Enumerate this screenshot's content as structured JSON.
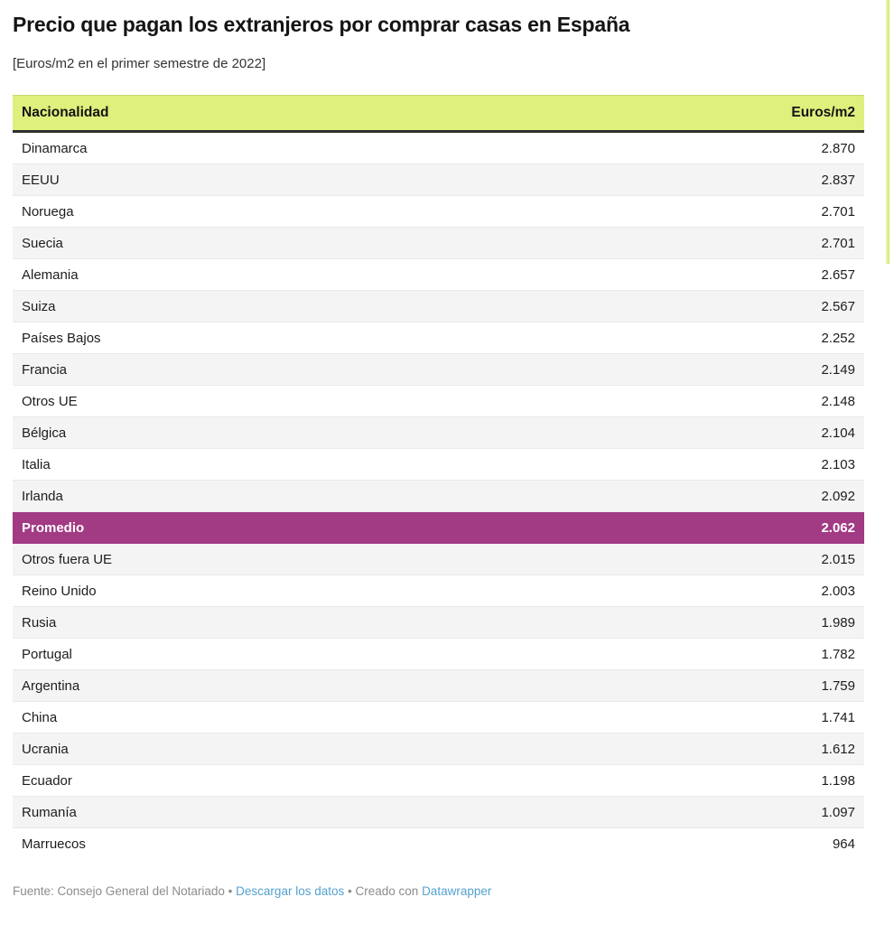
{
  "title": "Precio que pagan los extranjeros por comprar casas en España",
  "subtitle": "[Euros/m2 en el primer semestre de 2022]",
  "table": {
    "columns": [
      "Nacionalidad",
      "Euros/m2"
    ],
    "rows": [
      {
        "label": "Dinamarca",
        "value": "2.870",
        "highlight": false
      },
      {
        "label": "EEUU",
        "value": "2.837",
        "highlight": false
      },
      {
        "label": "Noruega",
        "value": "2.701",
        "highlight": false
      },
      {
        "label": "Suecia",
        "value": "2.701",
        "highlight": false
      },
      {
        "label": "Alemania",
        "value": "2.657",
        "highlight": false
      },
      {
        "label": "Suiza",
        "value": "2.567",
        "highlight": false
      },
      {
        "label": "Países Bajos",
        "value": "2.252",
        "highlight": false
      },
      {
        "label": "Francia",
        "value": "2.149",
        "highlight": false
      },
      {
        "label": "Otros UE",
        "value": "2.148",
        "highlight": false
      },
      {
        "label": "Bélgica",
        "value": "2.104",
        "highlight": false
      },
      {
        "label": "Italia",
        "value": "2.103",
        "highlight": false
      },
      {
        "label": "Irlanda",
        "value": "2.092",
        "highlight": false
      },
      {
        "label": "Promedio",
        "value": "2.062",
        "highlight": true
      },
      {
        "label": "Otros fuera UE",
        "value": "2.015",
        "highlight": false
      },
      {
        "label": "Reino Unido",
        "value": "2.003",
        "highlight": false
      },
      {
        "label": "Rusia",
        "value": "1.989",
        "highlight": false
      },
      {
        "label": "Portugal",
        "value": "1.782",
        "highlight": false
      },
      {
        "label": "Argentina",
        "value": "1.759",
        "highlight": false
      },
      {
        "label": "China",
        "value": "1.741",
        "highlight": false
      },
      {
        "label": "Ucrania",
        "value": "1.612",
        "highlight": false
      },
      {
        "label": "Ecuador",
        "value": "1.198",
        "highlight": false
      },
      {
        "label": "Rumanía",
        "value": "1.097",
        "highlight": false
      },
      {
        "label": "Marruecos",
        "value": "964",
        "highlight": false
      }
    ]
  },
  "chart_data": {
    "type": "table",
    "title": "Precio que pagan los extranjeros por comprar casas en España",
    "subtitle": "[Euros/m2 en el primer semestre de 2022]",
    "columns": [
      "Nacionalidad",
      "Euros/m2"
    ],
    "categories": [
      "Dinamarca",
      "EEUU",
      "Noruega",
      "Suecia",
      "Alemania",
      "Suiza",
      "Países Bajos",
      "Francia",
      "Otros UE",
      "Bélgica",
      "Italia",
      "Irlanda",
      "Promedio",
      "Otros fuera UE",
      "Reino Unido",
      "Rusia",
      "Portugal",
      "Argentina",
      "China",
      "Ucrania",
      "Ecuador",
      "Rumanía",
      "Marruecos"
    ],
    "values": [
      2870,
      2837,
      2701,
      2701,
      2657,
      2567,
      2252,
      2149,
      2148,
      2104,
      2103,
      2092,
      2062,
      2015,
      2003,
      1989,
      1782,
      1759,
      1741,
      1612,
      1198,
      1097,
      964
    ],
    "highlighted_row": "Promedio",
    "source": "Consejo General del Notariado"
  },
  "footer": {
    "source": "Fuente: Consejo General del Notariado",
    "separator": "•",
    "download_label": "Descargar los datos",
    "created_with": "Creado con",
    "datawrapper_label": "Datawrapper"
  },
  "colors": {
    "header_bg": "#dff07d",
    "header_border_bottom": "#2e2e2e",
    "highlight_bg": "#a23a84",
    "row_alt_bg": "#f4f4f4",
    "row_border": "#e9e9e9",
    "link": "#55a1cf",
    "footer_text": "#8c8c8c"
  }
}
